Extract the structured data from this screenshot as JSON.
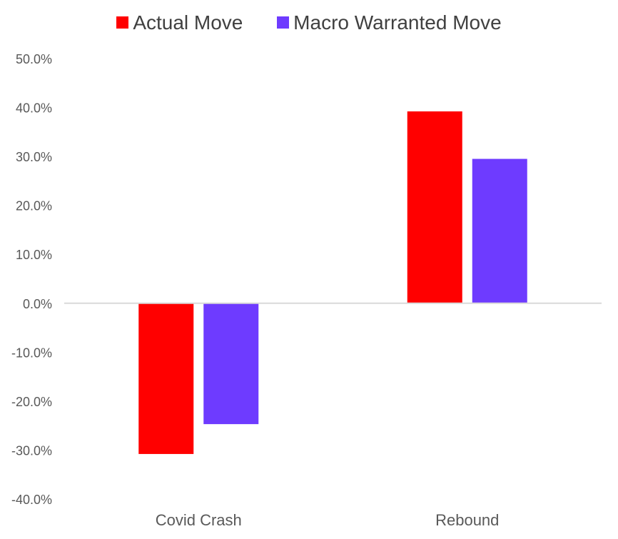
{
  "chart_data": {
    "type": "bar",
    "categories": [
      "Covid Crash",
      "Rebound"
    ],
    "series": [
      {
        "name": "Actual Move",
        "values": [
          -30.8,
          39.2
        ],
        "color": "#ff0000"
      },
      {
        "name": "Macro Warranted Move",
        "values": [
          -24.7,
          29.5
        ],
        "color": "#6e3bff"
      }
    ],
    "ylim": [
      -40,
      50
    ],
    "yticks": [
      50,
      40,
      30,
      20,
      10,
      0,
      -10,
      -20,
      -30,
      -40
    ],
    "ytick_labels": [
      "50.0%",
      "40.0%",
      "30.0%",
      "20.0%",
      "10.0%",
      "0.0%",
      "-10.0%",
      "-20.0%",
      "-30.0%",
      "-40.0%"
    ],
    "legend_position": "top-center",
    "grid": false,
    "title": "",
    "xlabel": "",
    "ylabel": ""
  }
}
